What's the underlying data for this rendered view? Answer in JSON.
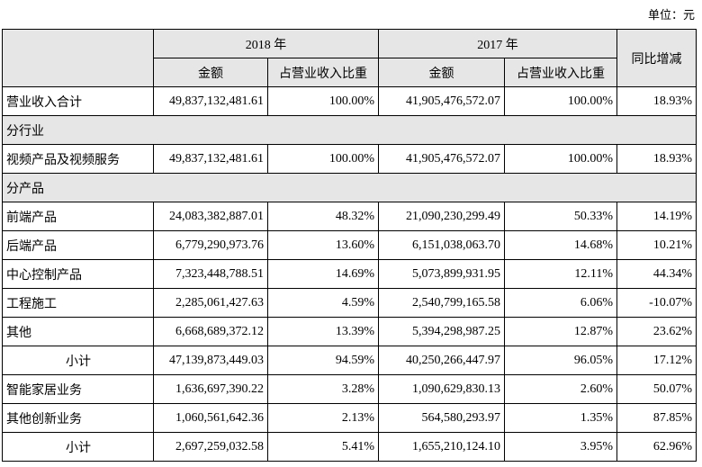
{
  "unit": "单位：元",
  "header": {
    "year_a": "2018 年",
    "year_b": "2017 年",
    "amount_a": "金额",
    "share_a": "占营业收入比重",
    "amount_b": "金额",
    "share_b": "占营业收入比重",
    "change": "同比增减"
  },
  "rows": [
    {
      "kind": "item",
      "label": "营业收入合计",
      "cells": [
        "49,837,132,481.61",
        "100.00%",
        "41,905,476,572.07",
        "100.00%",
        "18.93%"
      ]
    },
    {
      "kind": "section",
      "label": "分行业"
    },
    {
      "kind": "item",
      "label": "视频产品及视频服务",
      "cells": [
        "49,837,132,481.61",
        "100.00%",
        "41,905,476,572.07",
        "100.00%",
        "18.93%"
      ]
    },
    {
      "kind": "section",
      "label": "分产品"
    },
    {
      "kind": "item",
      "label": "前端产品",
      "cells": [
        "24,083,382,887.01",
        "48.32%",
        "21,090,230,299.49",
        "50.33%",
        "14.19%"
      ]
    },
    {
      "kind": "item",
      "label": "后端产品",
      "cells": [
        "6,779,290,973.76",
        "13.60%",
        "6,151,038,063.70",
        "14.68%",
        "10.21%"
      ]
    },
    {
      "kind": "item",
      "label": "中心控制产品",
      "cells": [
        "7,323,448,788.51",
        "14.69%",
        "5,073,899,931.95",
        "12.11%",
        "44.34%"
      ]
    },
    {
      "kind": "item",
      "label": "工程施工",
      "cells": [
        "2,285,061,427.63",
        "4.59%",
        "2,540,799,165.58",
        "6.06%",
        "-10.07%"
      ]
    },
    {
      "kind": "item",
      "label": "其他",
      "cells": [
        "6,668,689,372.12",
        "13.39%",
        "5,394,298,987.25",
        "12.87%",
        "23.62%"
      ]
    },
    {
      "kind": "subtotal",
      "label": "小计",
      "cells": [
        "47,139,873,449.03",
        "94.59%",
        "40,250,266,447.97",
        "96.05%",
        "17.12%"
      ]
    },
    {
      "kind": "item",
      "label": "智能家居业务",
      "cells": [
        "1,636,697,390.22",
        "3.28%",
        "1,090,629,830.13",
        "2.60%",
        "50.07%"
      ]
    },
    {
      "kind": "item",
      "label": "其他创新业务",
      "cells": [
        "1,060,561,642.36",
        "2.13%",
        "564,580,293.97",
        "1.35%",
        "87.85%"
      ]
    },
    {
      "kind": "subtotal",
      "label": "小计",
      "cells": [
        "2,697,259,032.58",
        "5.41%",
        "1,655,210,124.10",
        "3.95%",
        "62.96%"
      ]
    }
  ]
}
